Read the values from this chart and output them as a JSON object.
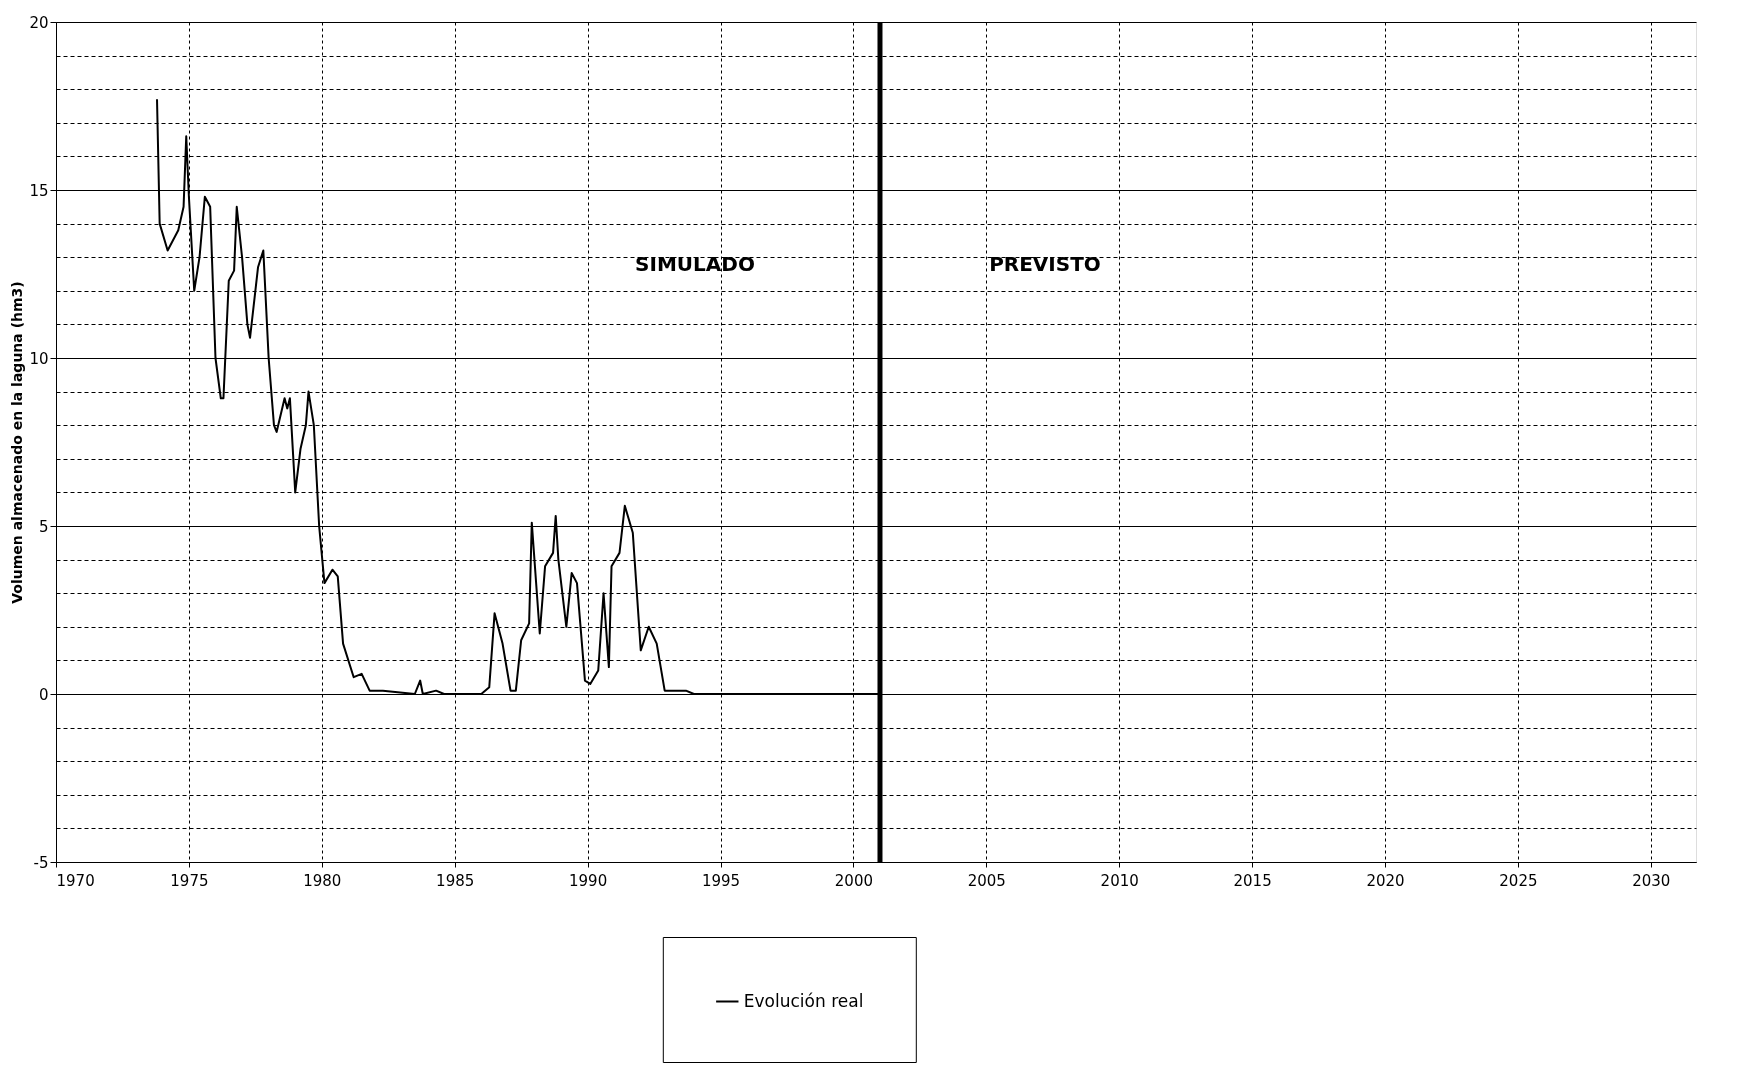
{
  "chart_data": {
    "type": "line",
    "ylabel": "Volumen almacenado en la laguna (hm3)",
    "x": [
      1973.8,
      1973.9,
      1974.2,
      1974.6,
      1974.8,
      1974.9,
      1975.0,
      1975.2,
      1975.4,
      1975.6,
      1975.8,
      1976.0,
      1976.2,
      1976.3,
      1976.5,
      1976.7,
      1976.8,
      1977.0,
      1977.2,
      1977.3,
      1977.6,
      1977.8,
      1978.0,
      1978.2,
      1978.3,
      1978.6,
      1978.7,
      1978.8,
      1979.0,
      1979.2,
      1979.4,
      1979.5,
      1979.7,
      1979.9,
      1980.1,
      1980.4,
      1980.6,
      1980.8,
      1981.2,
      1981.5,
      1981.8,
      1982.3,
      1983.5,
      1983.7,
      1983.8,
      1984.3,
      1984.6,
      1986.0,
      1986.3,
      1986.5,
      1986.8,
      1987.1,
      1987.3,
      1987.5,
      1987.8,
      1987.9,
      1988.2,
      1988.4,
      1988.7,
      1988.8,
      1988.9,
      1989.2,
      1989.4,
      1989.6,
      1989.9,
      1990.1,
      1990.4,
      1990.6,
      1990.8,
      1990.9,
      1991.2,
      1991.4,
      1991.7,
      1992.0,
      1992.3,
      1992.6,
      1992.9,
      1993.4,
      1993.7,
      1994.0,
      2001.0
    ],
    "series": [
      {
        "name": "Evolución real",
        "color": "#000000",
        "values": [
          17.7,
          14.0,
          13.2,
          13.8,
          14.5,
          16.6,
          14.8,
          12.0,
          13.0,
          14.8,
          14.5,
          10.0,
          8.8,
          8.8,
          12.3,
          12.6,
          14.5,
          13.0,
          11.0,
          10.6,
          12.7,
          13.2,
          10.0,
          8.0,
          7.8,
          8.8,
          8.5,
          8.8,
          6.0,
          7.3,
          8.0,
          9.0,
          8.0,
          5.0,
          3.3,
          3.7,
          3.5,
          1.5,
          0.5,
          0.6,
          0.1,
          0.1,
          0.0,
          0.4,
          0.0,
          0.1,
          0.0,
          0.0,
          0.2,
          2.4,
          1.5,
          0.1,
          0.1,
          1.6,
          2.1,
          5.1,
          1.8,
          3.8,
          4.2,
          5.3,
          4.0,
          2.0,
          3.6,
          3.3,
          0.4,
          0.3,
          0.7,
          3.0,
          0.8,
          3.8,
          4.2,
          5.6,
          4.8,
          1.3,
          2.0,
          1.5,
          0.1,
          0.1,
          0.1,
          0.0,
          0.0
        ]
      }
    ],
    "xlim": [
      1970,
      2031.7
    ],
    "xticks": [
      1970,
      1975,
      1980,
      1985,
      1990,
      1995,
      2000,
      2005,
      2010,
      2015,
      2020,
      2025,
      2030
    ],
    "ylim": [
      -5,
      20
    ],
    "yticks": [
      -5,
      {
        "value": -4,
        "label": null
      },
      {
        "value": -3,
        "label": null
      },
      {
        "value": -2,
        "label": null
      },
      {
        "value": -1,
        "label": null
      },
      0,
      {
        "value": 1,
        "label": null
      },
      {
        "value": 2,
        "label": null
      },
      {
        "value": 3,
        "label": null
      },
      {
        "value": 4,
        "label": null
      },
      5,
      {
        "value": 6,
        "label": null
      },
      {
        "value": 7,
        "label": null
      },
      {
        "value": 8,
        "label": null
      },
      {
        "value": 9,
        "label": null
      },
      10,
      {
        "value": 11,
        "label": null
      },
      {
        "value": 12,
        "label": null
      },
      {
        "value": 13,
        "label": null
      },
      {
        "value": 14,
        "label": null
      },
      15,
      {
        "value": 16,
        "label": null
      },
      {
        "value": 17,
        "label": null
      },
      {
        "value": 18,
        "label": null
      },
      {
        "value": 19,
        "label": null
      },
      20
    ],
    "ref_lines": [
      {
        "axis": "x",
        "value": 2001,
        "color": "#000000"
      }
    ],
    "annotations": [
      "SIMULADO",
      "PREVISTO"
    ],
    "grid": true,
    "legend": "bottom",
    "marker": "none",
    "line_style": "solid"
  }
}
